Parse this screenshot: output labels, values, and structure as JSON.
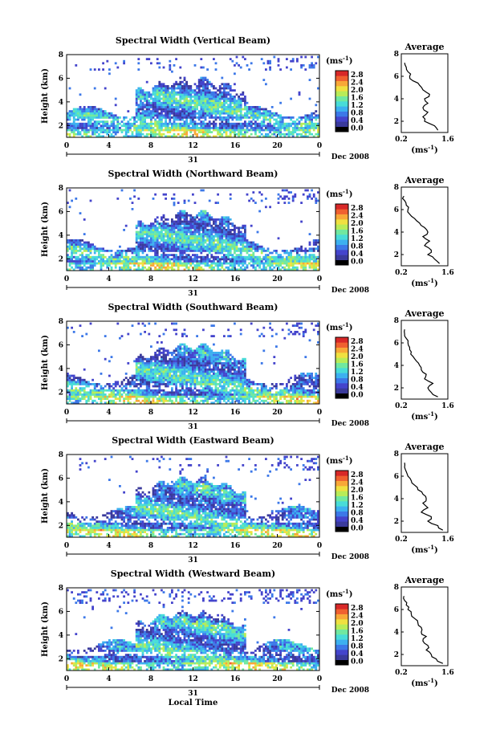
{
  "x_ticks": [
    "0",
    "4",
    "8",
    "12",
    "16",
    "20",
    "0"
  ],
  "date_day": "31",
  "date_label": "Dec 2008",
  "shared_xlabel": "Local Time",
  "main_ylabel": "Height (km)",
  "main_yticks": [
    "2",
    "4",
    "6",
    "8"
  ],
  "colorbar": {
    "unit_label": "(ms",
    "unit_exp": "-1",
    "unit_close": ")",
    "ticks": [
      "0.0",
      "0.4",
      "0.8",
      "1.2",
      "1.6",
      "2.0",
      "2.4",
      "2.8"
    ],
    "colors": [
      "#000000",
      "#3a3a9c",
      "#4444cc",
      "#3c78e8",
      "#3cb0f0",
      "#48dcd8",
      "#70e8a0",
      "#b8ec58",
      "#f0e040",
      "#f8a838",
      "#f06030",
      "#d82828"
    ]
  },
  "average_title": "Average",
  "average_yticks": [
    "2",
    "4",
    "6",
    "8"
  ],
  "average_xticks": [
    "0.2",
    "1.6"
  ],
  "average_xlabel": "(ms",
  "average_xlabel_exp": "-1",
  "average_xlabel_close": ")",
  "chart_data": [
    {
      "type": "heatmap",
      "title": "Spectral Width (Vertical Beam)",
      "x_range": [
        0,
        24
      ],
      "ylim": [
        1,
        8
      ],
      "average_profile": {
        "xlim": [
          0.2,
          1.6
        ],
        "heights": [
          1.2,
          1.6,
          2.0,
          2.4,
          2.8,
          3.2,
          3.6,
          4.0,
          4.4,
          4.8,
          5.2,
          5.6,
          6.0,
          6.4,
          6.8,
          7.2
        ],
        "values": [
          1.3,
          1.2,
          0.9,
          0.85,
          1.0,
          0.85,
          1.0,
          0.9,
          1.05,
          0.85,
          0.75,
          0.55,
          0.45,
          0.4,
          0.35,
          0.3
        ]
      }
    },
    {
      "type": "heatmap",
      "title": "Spectral Width (Northward Beam)",
      "x_range": [
        0,
        24
      ],
      "ylim": [
        1,
        8
      ],
      "average_profile": {
        "xlim": [
          0.2,
          1.6
        ],
        "heights": [
          1.2,
          1.6,
          2.0,
          2.4,
          2.8,
          3.2,
          3.6,
          4.0,
          4.4,
          4.8,
          5.2,
          5.6,
          6.0,
          6.4,
          6.8,
          7.2
        ],
        "values": [
          1.35,
          1.2,
          1.0,
          1.1,
          0.9,
          1.05,
          0.85,
          1.0,
          0.9,
          0.75,
          0.6,
          0.45,
          0.4,
          0.35,
          0.3,
          0.28
        ]
      }
    },
    {
      "type": "heatmap",
      "title": "Spectral Width (Southward Beam)",
      "x_range": [
        0,
        24
      ],
      "ylim": [
        1,
        8
      ],
      "average_profile": {
        "xlim": [
          0.2,
          1.6
        ],
        "heights": [
          1.2,
          1.6,
          2.0,
          2.4,
          2.8,
          3.2,
          3.6,
          4.0,
          4.4,
          4.8,
          5.2,
          5.6,
          6.0,
          6.4,
          6.8,
          7.2
        ],
        "values": [
          1.3,
          1.1,
          1.0,
          1.15,
          0.9,
          0.95,
          0.8,
          0.75,
          0.65,
          0.55,
          0.5,
          0.45,
          0.4,
          0.35,
          0.3,
          0.3
        ]
      }
    },
    {
      "type": "heatmap",
      "title": "Spectral Width (Eastward Beam)",
      "x_range": [
        0,
        24
      ],
      "ylim": [
        1,
        8
      ],
      "average_profile": {
        "xlim": [
          0.2,
          1.6
        ],
        "heights": [
          1.2,
          1.6,
          2.0,
          2.4,
          2.8,
          3.2,
          3.6,
          4.0,
          4.4,
          4.8,
          5.2,
          5.6,
          6.0,
          6.4,
          6.8,
          7.2
        ],
        "values": [
          1.45,
          1.3,
          1.0,
          1.1,
          0.8,
          1.0,
          0.85,
          0.95,
          0.85,
          0.7,
          0.6,
          0.5,
          0.4,
          0.35,
          0.3,
          0.3
        ]
      }
    },
    {
      "type": "heatmap",
      "title": "Spectral Width (Westward Beam)",
      "x_range": [
        0,
        24
      ],
      "ylim": [
        1,
        8
      ],
      "average_profile": {
        "xlim": [
          0.2,
          1.6
        ],
        "heights": [
          1.2,
          1.6,
          2.0,
          2.4,
          2.8,
          3.2,
          3.6,
          4.0,
          4.4,
          4.8,
          5.2,
          5.6,
          6.0,
          6.4,
          6.8,
          7.2
        ],
        "values": [
          1.45,
          1.25,
          1.1,
          0.95,
          1.0,
          0.85,
          0.95,
          0.8,
          0.8,
          0.7,
          0.6,
          0.5,
          0.4,
          0.35,
          0.3,
          0.28
        ]
      }
    }
  ]
}
